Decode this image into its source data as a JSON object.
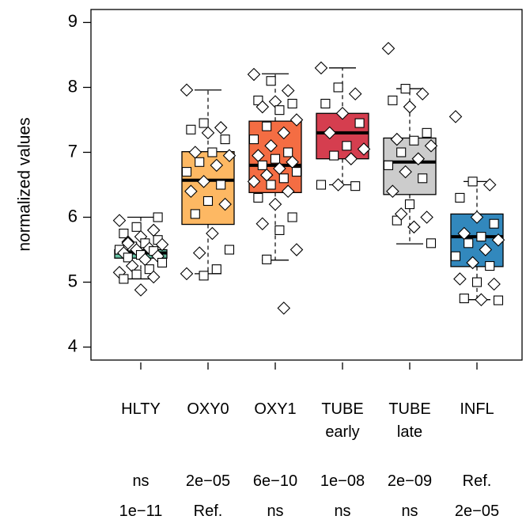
{
  "chart_data": {
    "type": "box",
    "ylabel": "normalized values",
    "ylim": [
      3.8,
      9.2
    ],
    "yticks": [
      4,
      5,
      6,
      7,
      8,
      9
    ],
    "categories": [
      "HLTY",
      "OXY0",
      "OXY1",
      "TUBE early",
      "TUBE late",
      "INFL"
    ],
    "boxes": [
      {
        "color": "#66c2a5",
        "whislo": 5.05,
        "q1": 5.37,
        "median": 5.45,
        "q3": 5.5,
        "whishi": 6.0,
        "points": [
          5.95,
          5.85,
          5.8,
          5.75,
          5.7,
          5.65,
          5.62,
          5.6,
          5.58,
          5.55,
          5.52,
          5.5,
          5.5,
          5.48,
          5.45,
          5.42,
          5.4,
          5.38,
          5.35,
          5.3,
          5.25,
          5.2,
          5.15,
          5.12,
          5.08,
          5.05,
          4.88,
          6.0,
          5.6
        ]
      },
      {
        "color": "#fdb863",
        "whislo": 5.13,
        "q1": 5.89,
        "median": 6.57,
        "q3": 7.01,
        "whishi": 7.96,
        "points": [
          7.96,
          7.45,
          7.38,
          7.35,
          7.3,
          7.2,
          7.0,
          7.0,
          6.95,
          6.85,
          6.8,
          6.7,
          6.55,
          6.5,
          6.4,
          6.25,
          6.2,
          6.05,
          5.75,
          5.5,
          5.45,
          5.2,
          5.13,
          5.1
        ]
      },
      {
        "color": "#f46d43",
        "whislo": 5.34,
        "q1": 6.38,
        "median": 6.8,
        "q3": 7.48,
        "whishi": 8.21,
        "points": [
          8.2,
          8.1,
          7.95,
          7.8,
          7.78,
          7.75,
          7.7,
          7.65,
          7.5,
          7.4,
          7.3,
          7.2,
          7.1,
          7.0,
          6.95,
          6.9,
          6.85,
          6.8,
          6.75,
          6.7,
          6.65,
          6.6,
          6.55,
          6.5,
          6.4,
          6.3,
          6.2,
          6.0,
          5.9,
          5.8,
          5.5,
          5.35,
          4.6
        ]
      },
      {
        "color": "#d53e4f",
        "whislo": 6.5,
        "q1": 6.9,
        "median": 7.3,
        "q3": 7.6,
        "whishi": 8.3,
        "points": [
          8.3,
          8.0,
          7.9,
          7.75,
          7.6,
          7.45,
          7.3,
          7.1,
          7.05,
          6.95,
          6.9,
          6.5,
          6.5,
          6.48
        ]
      },
      {
        "color": "#cccccc",
        "whislo": 5.59,
        "q1": 6.35,
        "median": 6.85,
        "q3": 7.22,
        "whishi": 7.98,
        "points": [
          8.6,
          7.98,
          7.9,
          7.8,
          7.7,
          7.3,
          7.2,
          7.18,
          7.1,
          7.0,
          6.9,
          6.8,
          6.7,
          6.6,
          6.4,
          6.2,
          6.0,
          5.95,
          5.85,
          5.6,
          6.05
        ]
      },
      {
        "color": "#3288bd",
        "whislo": 4.73,
        "q1": 5.24,
        "median": 5.7,
        "q3": 6.05,
        "whishi": 6.55,
        "points": [
          7.55,
          6.55,
          6.5,
          6.3,
          6.0,
          5.9,
          5.75,
          5.7,
          5.65,
          5.6,
          5.5,
          5.4,
          5.3,
          5.25,
          5.05,
          5.0,
          4.97,
          4.75,
          4.73,
          4.72
        ]
      }
    ],
    "annotation_rows": [
      [
        "ns",
        "2e−05",
        "6e−10",
        "1e−08",
        "2e−09",
        "Ref."
      ],
      [
        "1e−11",
        "Ref.",
        "ns",
        "ns",
        "ns",
        "2e−05"
      ]
    ]
  }
}
